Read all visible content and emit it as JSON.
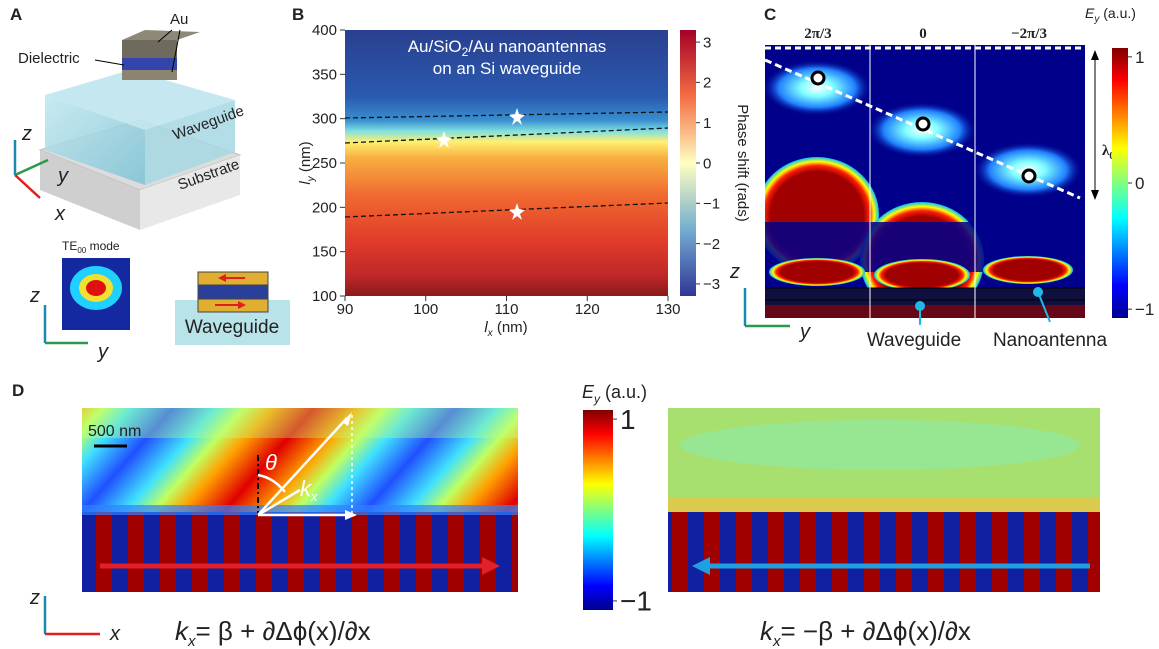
{
  "panels": {
    "A": {
      "label": "A",
      "au": "Au",
      "dielectric": "Dielectric",
      "waveguide": "Waveguide",
      "substrate": "Substrate",
      "axes": {
        "z": "z",
        "y": "y",
        "x": "x"
      },
      "mode": {
        "main": "TE",
        "sub": "00",
        "rest": " mode"
      },
      "mode_axes": {
        "z": "z",
        "y": "y"
      },
      "schematic_label": "Waveguide"
    },
    "B": {
      "label": "B",
      "title_line1": {
        "pre": "Au/SiO",
        "sub": "2",
        "post": "/Au nanoantennas"
      },
      "title_line2": "on an Si waveguide",
      "xlabel": {
        "main": "l",
        "sub": "x",
        "rest": " (nm)"
      },
      "ylabel": {
        "main": "l",
        "sub": "y",
        "rest": " (nm)"
      },
      "xlim": [
        90,
        130
      ],
      "xticks": [
        90,
        100,
        110,
        120,
        130
      ],
      "ylim": [
        100,
        400
      ],
      "yticks": [
        100,
        150,
        200,
        250,
        300,
        350,
        400
      ],
      "colorbar": {
        "label": "Phase shift (rads)",
        "lim": [
          -3.3,
          3.3
        ],
        "ticks": [
          3,
          2,
          1,
          0,
          {
            "value": -1,
            "label": "−1"
          },
          {
            "value": -2,
            "label": "−2"
          },
          {
            "value": -3,
            "label": "−3"
          }
        ]
      }
    },
    "C": {
      "label": "C",
      "columns": [
        "2π/3",
        "0",
        "−2π/3"
      ],
      "lambda": {
        "main": "λ",
        "sub": "0"
      },
      "colorbar": {
        "label": {
          "main": "E",
          "sub": "y",
          "rest": " (a.u.)"
        },
        "lim": [
          -1.07,
          1.07
        ],
        "ticks": [
          1,
          0,
          {
            "value": -1,
            "label": "−1"
          }
        ]
      },
      "axes": {
        "z": "z",
        "y": "y"
      },
      "waveguide": "Waveguide",
      "nanoantenna": "Nanoantenna"
    },
    "D": {
      "label": "D",
      "scale": "500 nm",
      "theta": "θ",
      "k": {
        "main": "k",
        "sub": "x"
      },
      "colorbar": {
        "label": {
          "main": "E",
          "sub": "y",
          "rest": " (a.u.)"
        },
        "lim": [
          -1.1,
          1.1
        ],
        "ticks": [
          1,
          {
            "value": -1,
            "label": "−1"
          }
        ]
      },
      "axes": {
        "z": "z",
        "x": "x"
      },
      "eq_left": {
        "main": "k",
        "sub": "x",
        "rest": "= β + ∂Δϕ(x)/∂x"
      },
      "eq_right": {
        "main": "k",
        "sub": "x",
        "rest": "= −β + ∂Δϕ(x)/∂x"
      }
    }
  }
}
